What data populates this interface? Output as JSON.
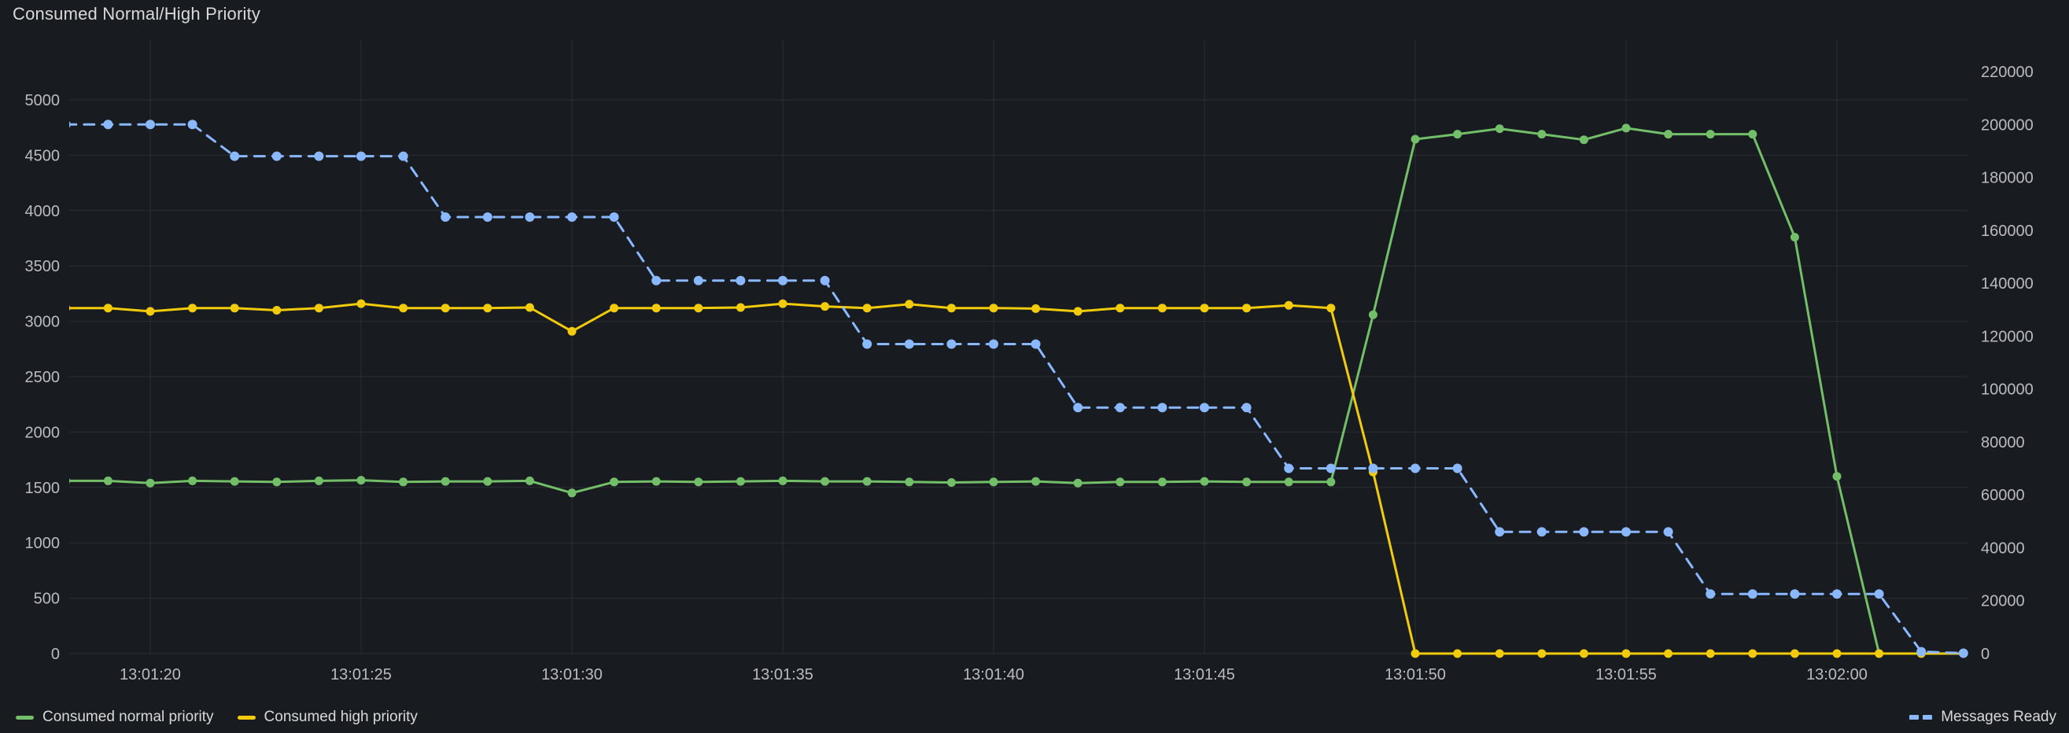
{
  "panel": {
    "title": "Consumed Normal/High Priority"
  },
  "colors": {
    "background": "#181b1f",
    "grid": "rgba(204,204,220,0.10)",
    "axis_text": "rgba(208,209,218,0.88)",
    "title_text": "#d8d9da",
    "legend_text": "#d8d9da",
    "green": "#73bf69",
    "yellow": "#f2cc0c",
    "blue": "#8ab8ff"
  },
  "legend": {
    "left_items": [
      {
        "label": "Consumed normal priority",
        "color": "#73bf69",
        "style": "solid"
      },
      {
        "label": "Consumed high priority",
        "color": "#f2cc0c",
        "style": "solid"
      }
    ],
    "right_items": [
      {
        "label": "Messages Ready",
        "color": "#8ab8ff",
        "style": "dashed"
      }
    ]
  },
  "chart_data": {
    "type": "line",
    "title": "Consumed Normal/High Priority",
    "grid": true,
    "legend_position": "bottom",
    "x_origin": "13:01:00",
    "x_step_seconds": 1,
    "x_axis": {
      "ticks": [
        {
          "t": 20,
          "label": "13:01:20"
        },
        {
          "t": 25,
          "label": "13:01:25"
        },
        {
          "t": 30,
          "label": "13:01:30"
        },
        {
          "t": 35,
          "label": "13:01:35"
        },
        {
          "t": 40,
          "label": "13:01:40"
        },
        {
          "t": 45,
          "label": "13:01:45"
        },
        {
          "t": 50,
          "label": "13:01:50"
        },
        {
          "t": 55,
          "label": "13:01:55"
        },
        {
          "t": 60,
          "label": "13:02:00"
        }
      ]
    },
    "left_axis": {
      "min": 0,
      "max": 5000,
      "ticks": [
        0,
        500,
        1000,
        1500,
        2000,
        2500,
        3000,
        3500,
        4000,
        4500,
        5000
      ]
    },
    "right_axis": {
      "min": 0,
      "max": 220000,
      "ticks": [
        0,
        20000,
        40000,
        60000,
        80000,
        100000,
        120000,
        140000,
        160000,
        180000,
        200000,
        220000
      ]
    },
    "series": [
      {
        "name": "Consumed normal priority",
        "axis": "left",
        "color": "#73bf69",
        "line": "solid",
        "points": [
          [
            18,
            1560
          ],
          [
            19,
            1560
          ],
          [
            20,
            1540
          ],
          [
            21,
            1560
          ],
          [
            22,
            1555
          ],
          [
            23,
            1550
          ],
          [
            24,
            1560
          ],
          [
            25,
            1565
          ],
          [
            26,
            1550
          ],
          [
            27,
            1555
          ],
          [
            28,
            1555
          ],
          [
            29,
            1560
          ],
          [
            30,
            1450
          ],
          [
            31,
            1550
          ],
          [
            32,
            1555
          ],
          [
            33,
            1550
          ],
          [
            34,
            1555
          ],
          [
            35,
            1560
          ],
          [
            36,
            1555
          ],
          [
            37,
            1555
          ],
          [
            38,
            1550
          ],
          [
            39,
            1545
          ],
          [
            40,
            1550
          ],
          [
            41,
            1555
          ],
          [
            42,
            1540
          ],
          [
            43,
            1550
          ],
          [
            44,
            1550
          ],
          [
            45,
            1555
          ],
          [
            46,
            1550
          ],
          [
            47,
            1550
          ],
          [
            48,
            1550
          ],
          [
            49,
            3060
          ],
          [
            50,
            4645
          ],
          [
            51,
            4690
          ],
          [
            52,
            4740
          ],
          [
            53,
            4690
          ],
          [
            54,
            4640
          ],
          [
            55,
            4745
          ],
          [
            56,
            4690
          ],
          [
            57,
            4690
          ],
          [
            58,
            4690
          ],
          [
            59,
            3760
          ],
          [
            60,
            1600
          ],
          [
            61,
            0
          ]
        ]
      },
      {
        "name": "Consumed high priority",
        "axis": "left",
        "color": "#f2cc0c",
        "line": "solid",
        "points": [
          [
            18,
            3120
          ],
          [
            19,
            3120
          ],
          [
            20,
            3090
          ],
          [
            21,
            3120
          ],
          [
            22,
            3120
          ],
          [
            23,
            3100
          ],
          [
            24,
            3120
          ],
          [
            25,
            3160
          ],
          [
            26,
            3120
          ],
          [
            27,
            3120
          ],
          [
            28,
            3120
          ],
          [
            29,
            3125
          ],
          [
            30,
            2910
          ],
          [
            31,
            3120
          ],
          [
            32,
            3120
          ],
          [
            33,
            3120
          ],
          [
            34,
            3125
          ],
          [
            35,
            3160
          ],
          [
            36,
            3135
          ],
          [
            37,
            3120
          ],
          [
            38,
            3155
          ],
          [
            39,
            3120
          ],
          [
            40,
            3120
          ],
          [
            41,
            3115
          ],
          [
            42,
            3090
          ],
          [
            43,
            3120
          ],
          [
            44,
            3120
          ],
          [
            45,
            3120
          ],
          [
            46,
            3120
          ],
          [
            47,
            3145
          ],
          [
            48,
            3120
          ],
          [
            49,
            1640
          ],
          [
            50,
            0
          ],
          [
            51,
            0
          ],
          [
            52,
            0
          ],
          [
            53,
            0
          ],
          [
            54,
            0
          ],
          [
            55,
            0
          ],
          [
            56,
            0
          ],
          [
            57,
            0
          ],
          [
            58,
            0
          ],
          [
            59,
            0
          ],
          [
            60,
            0
          ],
          [
            61,
            0
          ],
          [
            62,
            0
          ],
          [
            63,
            0
          ]
        ]
      },
      {
        "name": "Messages Ready",
        "axis": "right",
        "color": "#8ab8ff",
        "line": "dashed",
        "points": [
          [
            18,
            200000
          ],
          [
            19,
            200000
          ],
          [
            20,
            200000
          ],
          [
            21,
            200000
          ],
          [
            22,
            188000
          ],
          [
            23,
            188000
          ],
          [
            24,
            188000
          ],
          [
            25,
            188000
          ],
          [
            26,
            188000
          ],
          [
            27,
            165000
          ],
          [
            28,
            165000
          ],
          [
            29,
            165000
          ],
          [
            30,
            165000
          ],
          [
            31,
            165000
          ],
          [
            32,
            141000
          ],
          [
            33,
            141000
          ],
          [
            34,
            141000
          ],
          [
            35,
            141000
          ],
          [
            36,
            141000
          ],
          [
            37,
            117000
          ],
          [
            38,
            117000
          ],
          [
            39,
            117000
          ],
          [
            40,
            117000
          ],
          [
            41,
            117000
          ],
          [
            42,
            93000
          ],
          [
            43,
            93000
          ],
          [
            44,
            93000
          ],
          [
            45,
            93000
          ],
          [
            46,
            93000
          ],
          [
            47,
            70000
          ],
          [
            48,
            70000
          ],
          [
            49,
            70000
          ],
          [
            50,
            70000
          ],
          [
            51,
            70000
          ],
          [
            52,
            46000
          ],
          [
            53,
            46000
          ],
          [
            54,
            46000
          ],
          [
            55,
            46000
          ],
          [
            56,
            46000
          ],
          [
            57,
            22500
          ],
          [
            58,
            22500
          ],
          [
            59,
            22500
          ],
          [
            60,
            22500
          ],
          [
            61,
            22500
          ],
          [
            62,
            700
          ],
          [
            63,
            150
          ]
        ]
      }
    ]
  }
}
